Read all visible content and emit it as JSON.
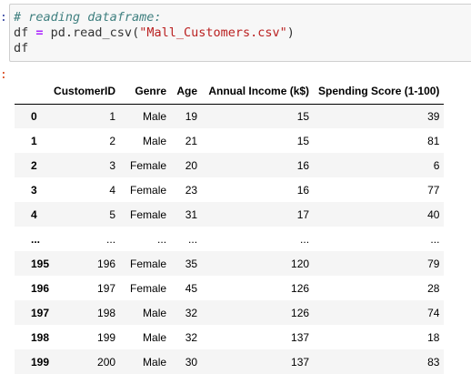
{
  "cell": {
    "code_lines": [
      [
        {
          "t": "# reading dataframe:",
          "k": "comment"
        }
      ],
      [
        {
          "t": "df ",
          "k": "plain"
        },
        {
          "t": "=",
          "k": "op"
        },
        {
          "t": " pd.read_csv(",
          "k": "plain"
        },
        {
          "t": "\"Mall_Customers.csv\"",
          "k": "str"
        },
        {
          "t": ")",
          "k": "plain"
        }
      ],
      [
        {
          "t": "df",
          "k": "plain"
        }
      ]
    ],
    "in_prompt": ":",
    "out_prompt": ":"
  },
  "dataframe": {
    "columns": [
      "",
      "CustomerID",
      "Genre",
      "Age",
      "Annual Income (k$)",
      "Spending Score (1-100)"
    ],
    "rows": [
      {
        "index": "0",
        "cells": [
          "1",
          "Male",
          "19",
          "15",
          "39"
        ]
      },
      {
        "index": "1",
        "cells": [
          "2",
          "Male",
          "21",
          "15",
          "81"
        ]
      },
      {
        "index": "2",
        "cells": [
          "3",
          "Female",
          "20",
          "16",
          "6"
        ]
      },
      {
        "index": "3",
        "cells": [
          "4",
          "Female",
          "23",
          "16",
          "77"
        ]
      },
      {
        "index": "4",
        "cells": [
          "5",
          "Female",
          "31",
          "17",
          "40"
        ]
      },
      {
        "index": "...",
        "cells": [
          "...",
          "...",
          "...",
          "...",
          "..."
        ]
      },
      {
        "index": "195",
        "cells": [
          "196",
          "Female",
          "35",
          "120",
          "79"
        ]
      },
      {
        "index": "196",
        "cells": [
          "197",
          "Female",
          "45",
          "126",
          "28"
        ]
      },
      {
        "index": "197",
        "cells": [
          "198",
          "Male",
          "32",
          "126",
          "74"
        ]
      },
      {
        "index": "198",
        "cells": [
          "199",
          "Male",
          "32",
          "137",
          "18"
        ]
      },
      {
        "index": "199",
        "cells": [
          "200",
          "Male",
          "30",
          "137",
          "83"
        ]
      }
    ]
  },
  "colors": {
    "cell_background": "#f7f7f7",
    "cell_border": "#cfcfcf",
    "comment": "#408080",
    "operator": "#aa22ff",
    "string": "#ba2121",
    "in_prompt": "#303f9f",
    "out_prompt": "#d84315",
    "row_stripe": "#f5f5f5"
  }
}
